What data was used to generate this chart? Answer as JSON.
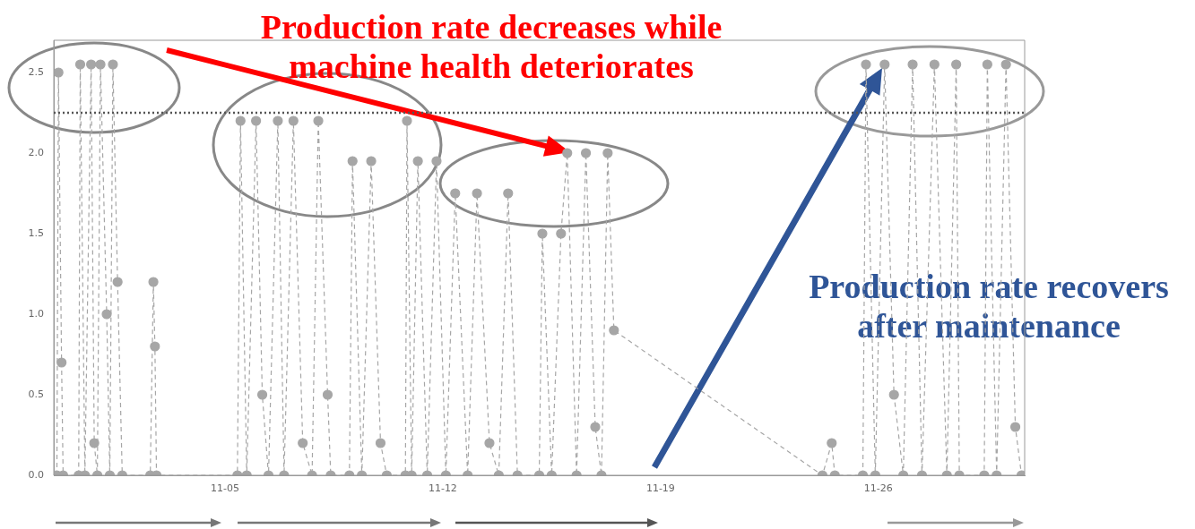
{
  "chart_data": {
    "type": "line",
    "color": "#a6a6a6",
    "marker": "circle",
    "line_style": "dashed",
    "grid": false,
    "legend": false,
    "x": [
      "--10-30T14:24",
      "--10-30T15:36",
      "--10-30T18:00",
      "--10-30T19:12",
      "--10-31T07:12",
      "--10-31T08:24",
      "--10-31T12:00",
      "--10-31T16:48",
      "--10-31T19:12",
      "--10-31T21:36",
      "--11-01T00:00",
      "--11-01T04:48",
      "--11-01T07:12",
      "--11-01T09:36",
      "--11-01T13:12",
      "--11-01T16:48",
      "--11-02T14:24",
      "--11-02T16:48",
      "--11-02T18:00",
      "--11-02T19:12",
      "--11-05T09:36",
      "--11-05T12:00",
      "--11-05T16:48",
      "--11-06T00:00",
      "--11-06T04:48",
      "--11-06T09:36",
      "--11-06T16:48",
      "--11-06T21:36",
      "--11-07T04:48",
      "--11-07T12:00",
      "--11-07T19:12",
      "--11-08T00:00",
      "--11-08T07:12",
      "--11-08T09:36",
      "--11-09T00:00",
      "--11-09T02:24",
      "--11-09T09:36",
      "--11-09T16:48",
      "--11-10T00:00",
      "--11-10T04:48",
      "--11-10T19:12",
      "--11-10T20:24",
      "--11-11T00:00",
      "--11-11T04:48",
      "--11-11T12:00",
      "--11-11T19:12",
      "--11-12T02:24",
      "--11-12T09:36",
      "--11-12T19:12",
      "--11-13T02:24",
      "--11-13T12:00",
      "--11-13T19:12",
      "--11-14T02:24",
      "--11-14T09:36",
      "--11-15T02:24",
      "--11-15T04:48",
      "--11-15T12:00",
      "--11-15T19:12",
      "--11-16T00:00",
      "--11-16T07:12",
      "--11-16T14:24",
      "--11-16T21:36",
      "--11-17T02:24",
      "--11-17T07:12",
      "--11-17T12:00",
      "--11-24T04:48",
      "--11-24T12:00",
      "--11-24T14:24",
      "--11-25T12:00",
      "--11-25T14:24",
      "--11-25T21:36",
      "--11-26T04:48",
      "--11-26T12:00",
      "--11-26T19:12",
      "--11-27T02:24",
      "--11-27T09:36",
      "--11-27T19:12",
      "--11-28T04:48",
      "--11-28T12:00",
      "--11-28T14:24",
      "--11-29T09:36",
      "--11-29T12:00",
      "--11-29T19:12",
      "--11-30T02:24",
      "--11-30T09:36",
      "--11-30T14:24"
    ],
    "values": [
      0,
      2.5,
      0.7,
      0,
      0,
      2.55,
      0,
      2.55,
      0.2,
      0,
      2.55,
      1.0,
      0,
      2.55,
      1.2,
      0,
      0,
      1.2,
      0.8,
      0,
      0,
      2.2,
      0,
      2.2,
      0.5,
      0,
      2.2,
      0,
      2.2,
      0.2,
      0,
      2.2,
      0.5,
      0,
      0,
      1.95,
      0,
      1.95,
      0.2,
      0,
      0,
      2.2,
      0,
      1.95,
      0,
      1.95,
      0,
      1.75,
      0,
      1.75,
      0.2,
      0,
      1.75,
      0,
      0,
      1.5,
      0,
      1.5,
      2.0,
      0,
      2.0,
      0.3,
      0,
      2.0,
      0.9,
      0,
      0.2,
      0,
      0,
      2.55,
      0,
      2.55,
      0.5,
      0,
      2.55,
      0,
      2.55,
      0,
      2.55,
      0,
      0,
      2.55,
      0,
      2.55,
      0.3,
      0
    ],
    "xlim": [
      "--10-30T12:00",
      "--11-30T16:48"
    ],
    "xticks": [
      {
        "value": "--11-05",
        "label": "11-05"
      },
      {
        "value": "--11-12",
        "label": "11-12"
      },
      {
        "value": "--11-19",
        "label": "11-19"
      },
      {
        "value": "--11-26",
        "label": "11-26"
      }
    ],
    "ylim": [
      0,
      2.7
    ],
    "yticks": [
      {
        "value": 0,
        "label": "0.0"
      },
      {
        "value": 0.5,
        "label": "0.5"
      },
      {
        "value": 1,
        "label": "1.0"
      },
      {
        "value": 1.5,
        "label": "1.5"
      },
      {
        "value": 2,
        "label": "2.0"
      },
      {
        "value": 2.5,
        "label": "2.5"
      }
    ],
    "ref_lines": [
      {
        "axis": "y",
        "value": 2.25,
        "color": "#555555",
        "line_style": "dotted"
      }
    ],
    "annotations": [
      "Production rate decreases while\nmachine health deteriorates",
      "Production rate recovers\nafter maintenance"
    ]
  }
}
